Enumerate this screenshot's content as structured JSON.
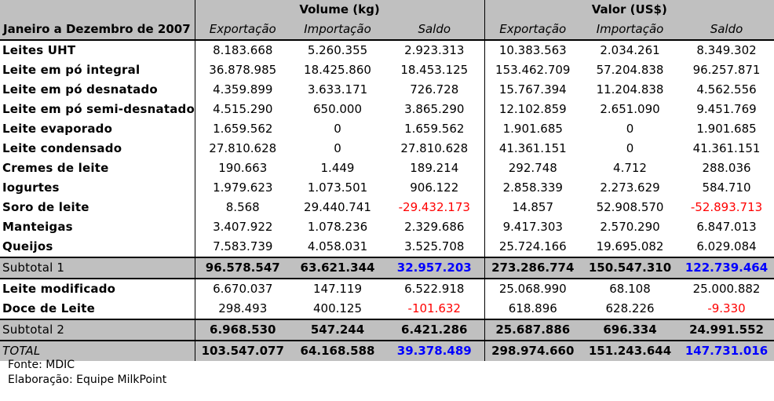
{
  "header": {
    "period": "Janeiro a Dezembro de 2007",
    "volume_group": "Volume (kg)",
    "valor_group": "Valor (US$)",
    "columns": [
      "Exportação",
      "Importação",
      "Saldo",
      "Exportação",
      "Importação",
      "Saldo"
    ]
  },
  "colors": {
    "negative": "#ff0000",
    "positive_total": "#0000ff",
    "header_bg": "#c0c0c0"
  },
  "rows": [
    {
      "type": "data",
      "label": "Leites UHT",
      "values": [
        "8.183.668",
        "5.260.355",
        "2.923.313",
        "10.383.563",
        "2.034.261",
        "8.349.302"
      ]
    },
    {
      "type": "data",
      "label": "Leite em pó integral",
      "values": [
        "36.878.985",
        "18.425.860",
        "18.453.125",
        "153.462.709",
        "57.204.838",
        "96.257.871"
      ]
    },
    {
      "type": "data",
      "label": "Leite em pó desnatado",
      "values": [
        "4.359.899",
        "3.633.171",
        "726.728",
        "15.767.394",
        "11.204.838",
        "4.562.556"
      ]
    },
    {
      "type": "data",
      "label": "Leite em pó semi-desnatado",
      "values": [
        "4.515.290",
        "650.000",
        "3.865.290",
        "12.102.859",
        "2.651.090",
        "9.451.769"
      ]
    },
    {
      "type": "data",
      "label": "Leite evaporado",
      "values": [
        "1.659.562",
        "0",
        "1.659.562",
        "1.901.685",
        "0",
        "1.901.685"
      ]
    },
    {
      "type": "data",
      "label": "Leite condensado",
      "values": [
        "27.810.628",
        "0",
        "27.810.628",
        "41.361.151",
        "0",
        "41.361.151"
      ]
    },
    {
      "type": "data",
      "label": "Cremes de leite",
      "values": [
        "190.663",
        "1.449",
        "189.214",
        "292.748",
        "4.712",
        "288.036"
      ]
    },
    {
      "type": "data",
      "label": "Iogurtes",
      "values": [
        "1.979.623",
        "1.073.501",
        "906.122",
        "2.858.339",
        "2.273.629",
        "584.710"
      ]
    },
    {
      "type": "data",
      "label": "Soro de leite",
      "values": [
        "8.568",
        "29.440.741",
        "-29.432.173",
        "14.857",
        "52.908.570",
        "-52.893.713"
      ]
    },
    {
      "type": "data",
      "label": "Manteigas",
      "values": [
        "3.407.922",
        "1.078.236",
        "2.329.686",
        "9.417.303",
        "2.570.290",
        "6.847.013"
      ]
    },
    {
      "type": "data",
      "label": "Queijos",
      "values": [
        "7.583.739",
        "4.058.031",
        "3.525.708",
        "25.724.166",
        "19.695.082",
        "6.029.084"
      ]
    },
    {
      "type": "sub1",
      "label": "Subtotal 1",
      "values": [
        "96.578.547",
        "63.621.344",
        "32.957.203",
        "273.286.774",
        "150.547.310",
        "122.739.464"
      ]
    },
    {
      "type": "data",
      "label": "Leite modificado",
      "values": [
        "6.670.037",
        "147.119",
        "6.522.918",
        "25.068.990",
        "68.108",
        "25.000.882"
      ]
    },
    {
      "type": "data",
      "label": "Doce de Leite",
      "values": [
        "298.493",
        "400.125",
        "-101.632",
        "618.896",
        "628.226",
        "-9.330"
      ]
    },
    {
      "type": "sub2",
      "label": "Subtotal 2",
      "values": [
        "6.968.530",
        "547.244",
        "6.421.286",
        "25.687.886",
        "696.334",
        "24.991.552"
      ]
    },
    {
      "type": "total",
      "label": "TOTAL",
      "values": [
        "103.547.077",
        "64.168.588",
        "39.378.489",
        "298.974.660",
        "151.243.644",
        "147.731.016"
      ]
    }
  ],
  "footer": {
    "source": "Fonte: MDIC",
    "credit": "Elaboração: Equipe MilkPoint"
  }
}
